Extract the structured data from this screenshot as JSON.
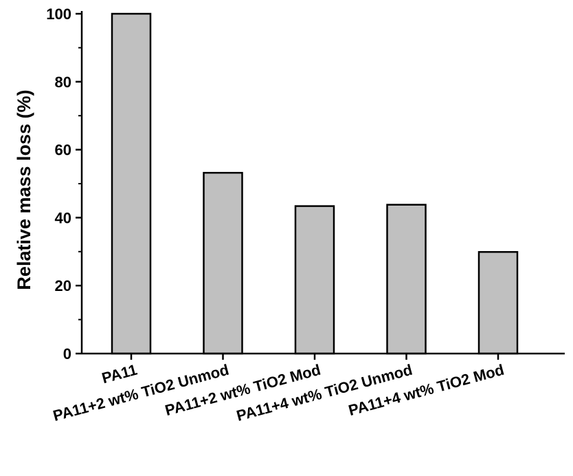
{
  "chart_data": {
    "type": "bar",
    "categories": [
      "PA11",
      "PA11+2 wt% TiO2 Unmod",
      "PA11+2 wt% TiO2 Mod",
      "PA11+4 wt% TiO2 Unmod",
      "PA11+4 wt% TiO2 Mod"
    ],
    "values": [
      100,
      53.2,
      43.4,
      43.8,
      29.9
    ],
    "title": "",
    "xlabel": "",
    "ylabel": "Relative mass loss (%)",
    "ylim": [
      0,
      100
    ],
    "yticks": [
      "0",
      "20",
      "40",
      "60",
      "80",
      "100"
    ],
    "bar_color": "#c0c0c0",
    "grid": false
  }
}
